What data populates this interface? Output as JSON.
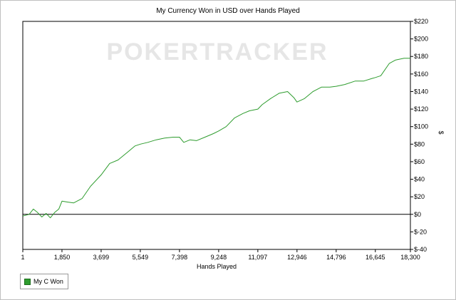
{
  "chart_data": {
    "type": "line",
    "title": "My Currency Won in USD over Hands Played",
    "watermark": "POKERTRACKER",
    "xlabel": "Hands Played",
    "ylabel": "$",
    "xlim": [
      1,
      18300
    ],
    "ylim": [
      -40,
      220
    ],
    "x_ticks": [
      "1",
      "1,850",
      "3,699",
      "5,549",
      "7,398",
      "9,248",
      "11,097",
      "12,946",
      "14,796",
      "16,645",
      "18,300"
    ],
    "x_tick_values": [
      1,
      1850,
      3699,
      5549,
      7398,
      9248,
      11097,
      12946,
      14796,
      16645,
      18300
    ],
    "y_ticks": [
      "$220",
      "$200",
      "$180",
      "$160",
      "$140",
      "$120",
      "$100",
      "$80",
      "$60",
      "$40",
      "$20",
      "$0",
      "$-20",
      "$-40"
    ],
    "y_tick_values": [
      220,
      200,
      180,
      160,
      140,
      120,
      100,
      80,
      60,
      40,
      20,
      0,
      -20,
      -40
    ],
    "grid": false,
    "zero_line": true,
    "legend_position": "bottom-left",
    "colors": {
      "line": "#2e9c2e",
      "axis": "#000000",
      "watermark": "#e6e6e6"
    },
    "series": [
      {
        "name": "My C Won",
        "x": [
          1,
          300,
          500,
          700,
          900,
          1100,
          1300,
          1500,
          1700,
          1850,
          2100,
          2400,
          2800,
          3200,
          3700,
          4100,
          4500,
          5000,
          5300,
          5549,
          5900,
          6300,
          6700,
          7100,
          7398,
          7600,
          7900,
          8200,
          8600,
          9000,
          9248,
          9600,
          10000,
          10400,
          10700,
          11097,
          11300,
          11700,
          12100,
          12500,
          12800,
          12946,
          13300,
          13700,
          14100,
          14500,
          14796,
          15200,
          15700,
          16100,
          16500,
          16645,
          16900,
          17300,
          17600,
          18000,
          18300
        ],
        "y": [
          -2,
          0,
          6,
          2,
          -3,
          1,
          -4,
          2,
          6,
          15,
          14,
          13,
          18,
          32,
          45,
          58,
          62,
          72,
          78,
          80,
          82,
          85,
          87,
          88,
          88,
          82,
          85,
          84,
          88,
          92,
          95,
          100,
          110,
          115,
          118,
          120,
          125,
          132,
          138,
          140,
          133,
          128,
          132,
          140,
          145,
          145,
          146,
          148,
          152,
          152,
          155,
          156,
          158,
          172,
          176,
          178,
          178
        ]
      }
    ]
  },
  "legend": {
    "label": "My C Won"
  }
}
